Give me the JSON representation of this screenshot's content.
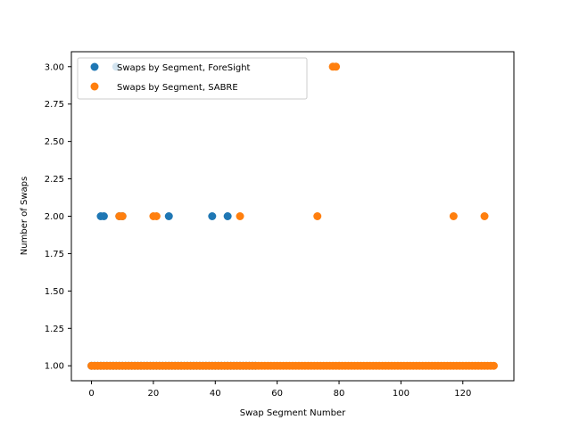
{
  "chart_data": {
    "type": "scatter",
    "title": "",
    "xlabel": "Swap Segment Number",
    "ylabel": "Number of Swaps",
    "xlim": [
      -6.5,
      136.5
    ],
    "ylim": [
      0.9,
      3.1
    ],
    "xticks": [
      0,
      20,
      40,
      60,
      80,
      100,
      120
    ],
    "yticks": [
      "1.00",
      "1.25",
      "1.50",
      "1.75",
      "2.00",
      "2.25",
      "2.50",
      "2.75",
      "3.00"
    ],
    "grid": false,
    "legend_position": "top-left",
    "series": [
      {
        "name": "Swaps by Segment, ForeSight",
        "color": "#1f77b4",
        "x": [
          0,
          1,
          2,
          3,
          4,
          5,
          6,
          7,
          8,
          9,
          10,
          11,
          12,
          13,
          14,
          15,
          16,
          17,
          18,
          19,
          20,
          21,
          22,
          23,
          24,
          25,
          26,
          27,
          28,
          29,
          30,
          31,
          32,
          33,
          34,
          35,
          36,
          37,
          38,
          39,
          40,
          41,
          42,
          43,
          44,
          45,
          46,
          47,
          48,
          49,
          50,
          51,
          52,
          53,
          3,
          4,
          8,
          9,
          10,
          25,
          39,
          44
        ],
        "y": [
          1,
          1,
          1,
          1,
          1,
          1,
          1,
          1,
          1,
          1,
          1,
          1,
          1,
          1,
          1,
          1,
          1,
          1,
          1,
          1,
          1,
          1,
          1,
          1,
          1,
          1,
          1,
          1,
          1,
          1,
          1,
          1,
          1,
          1,
          1,
          1,
          1,
          1,
          1,
          1,
          1,
          1,
          1,
          1,
          1,
          1,
          1,
          1,
          1,
          1,
          1,
          1,
          1,
          1,
          2,
          2,
          3,
          2,
          2,
          2,
          2,
          2
        ]
      },
      {
        "name": "Swaps by Segment, SABRE",
        "color": "#ff7f0e",
        "x": [
          0,
          1,
          2,
          3,
          4,
          5,
          6,
          7,
          8,
          9,
          10,
          11,
          12,
          13,
          14,
          15,
          16,
          17,
          18,
          19,
          20,
          21,
          22,
          23,
          24,
          25,
          26,
          27,
          28,
          29,
          30,
          31,
          32,
          33,
          34,
          35,
          36,
          37,
          38,
          39,
          40,
          41,
          42,
          43,
          44,
          45,
          46,
          47,
          48,
          49,
          50,
          51,
          52,
          53,
          54,
          55,
          56,
          57,
          58,
          59,
          60,
          61,
          62,
          63,
          64,
          65,
          66,
          67,
          68,
          69,
          70,
          71,
          72,
          73,
          74,
          75,
          76,
          77,
          78,
          79,
          80,
          81,
          82,
          83,
          84,
          85,
          86,
          87,
          88,
          89,
          90,
          91,
          92,
          93,
          94,
          95,
          96,
          97,
          98,
          99,
          100,
          101,
          102,
          103,
          104,
          105,
          106,
          107,
          108,
          109,
          110,
          111,
          112,
          113,
          114,
          115,
          116,
          117,
          118,
          119,
          120,
          121,
          122,
          123,
          124,
          125,
          126,
          127,
          128,
          129,
          130,
          9,
          10,
          20,
          21,
          48,
          73,
          117,
          127,
          78,
          79
        ],
        "y": [
          1,
          1,
          1,
          1,
          1,
          1,
          1,
          1,
          1,
          1,
          1,
          1,
          1,
          1,
          1,
          1,
          1,
          1,
          1,
          1,
          1,
          1,
          1,
          1,
          1,
          1,
          1,
          1,
          1,
          1,
          1,
          1,
          1,
          1,
          1,
          1,
          1,
          1,
          1,
          1,
          1,
          1,
          1,
          1,
          1,
          1,
          1,
          1,
          1,
          1,
          1,
          1,
          1,
          1,
          1,
          1,
          1,
          1,
          1,
          1,
          1,
          1,
          1,
          1,
          1,
          1,
          1,
          1,
          1,
          1,
          1,
          1,
          1,
          1,
          1,
          1,
          1,
          1,
          1,
          1,
          1,
          1,
          1,
          1,
          1,
          1,
          1,
          1,
          1,
          1,
          1,
          1,
          1,
          1,
          1,
          1,
          1,
          1,
          1,
          1,
          1,
          1,
          1,
          1,
          1,
          1,
          1,
          1,
          1,
          1,
          1,
          1,
          1,
          1,
          1,
          1,
          1,
          1,
          1,
          1,
          1,
          1,
          1,
          1,
          1,
          1,
          1,
          1,
          1,
          1,
          1,
          2,
          2,
          2,
          2,
          2,
          2,
          2,
          2,
          3,
          3
        ]
      }
    ]
  }
}
